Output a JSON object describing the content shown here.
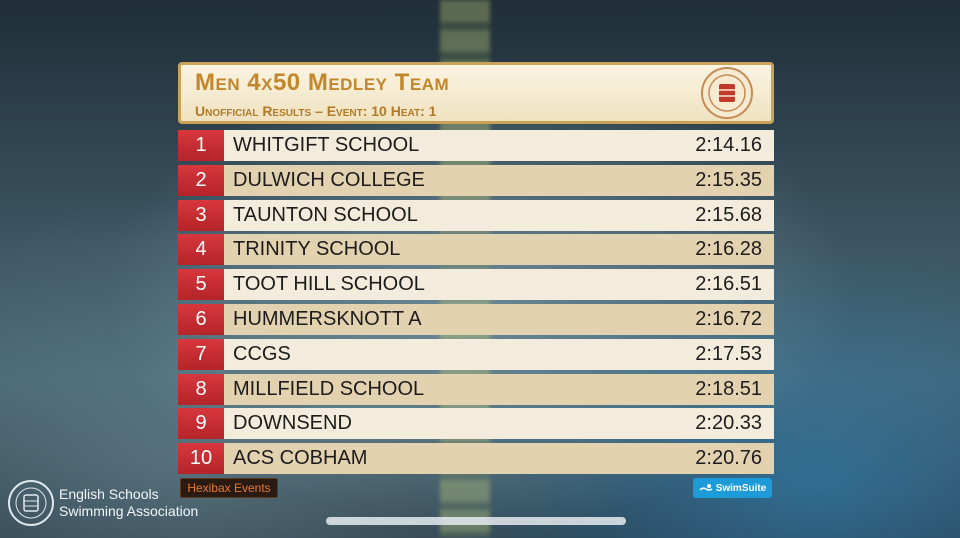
{
  "header": {
    "title": "Men 4x50 Medley Team",
    "subtitle": "Unofficial Results – Event: 10  Heat: 1"
  },
  "results": [
    {
      "pos": "1",
      "team": "WHITGIFT SCHOOL",
      "time": "2:14.16"
    },
    {
      "pos": "2",
      "team": "DULWICH COLLEGE",
      "time": "2:15.35"
    },
    {
      "pos": "3",
      "team": "TAUNTON SCHOOL",
      "time": "2:15.68"
    },
    {
      "pos": "4",
      "team": "TRINITY SCHOOL",
      "time": "2:16.28"
    },
    {
      "pos": "5",
      "team": "TOOT HILL SCHOOL",
      "time": "2:16.51"
    },
    {
      "pos": "6",
      "team": "HUMMERSKNOTT A",
      "time": "2:16.72"
    },
    {
      "pos": "7",
      "team": "CCGS",
      "time": "2:17.53"
    },
    {
      "pos": "8",
      "team": "MILLFIELD SCHOOL",
      "time": "2:18.51"
    },
    {
      "pos": "9",
      "team": "DOWNSEND",
      "time": "2:20.33"
    },
    {
      "pos": "10",
      "team": "ACS COBHAM",
      "time": "2:20.76"
    }
  ],
  "footer": {
    "org_line1": "English Schools",
    "org_line2": "Swimming Association",
    "hexibax_label": "Hexibax Events",
    "swimsuite_label": "SwimSuite"
  },
  "colors": {
    "position_red": "#c42d32",
    "title_gold": "#c2872b",
    "row_light": "#f3ecdc",
    "row_dark": "#e3d2b0",
    "swimsuite_blue": "#1d9ad8"
  }
}
